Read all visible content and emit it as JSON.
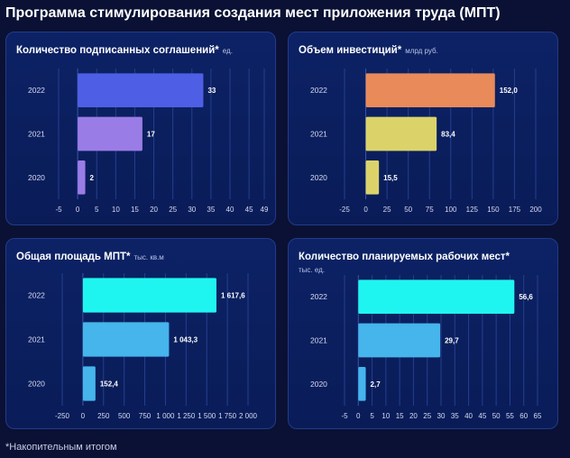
{
  "page": {
    "title": "Программа стимулирования создания мест приложения труда (МПТ)",
    "footnote": "*Накопительным итогом"
  },
  "chart_data": [
    {
      "type": "bar",
      "orientation": "horizontal",
      "title": "Количество подписанных соглашений*",
      "unit": "ед.",
      "categories": [
        "2022",
        "2021",
        "2020"
      ],
      "values": [
        33,
        17,
        2
      ],
      "value_labels": [
        "33",
        "17",
        "2"
      ],
      "colors": [
        "#4e5fe6",
        "#9a7ce6",
        "#9a7ce6"
      ],
      "xlim": [
        -5,
        49
      ],
      "xticks": [
        -5,
        0,
        5,
        10,
        15,
        20,
        25,
        30,
        35,
        40,
        45,
        49
      ],
      "xtick_labels": [
        "-5",
        "0",
        "5",
        "10",
        "15",
        "20",
        "25",
        "30",
        "35",
        "40",
        "45",
        "49"
      ],
      "grid": true
    },
    {
      "type": "bar",
      "orientation": "horizontal",
      "title": "Объем инвестиций*",
      "unit": "млрд руб.",
      "categories": [
        "2022",
        "2021",
        "2020"
      ],
      "values": [
        152.0,
        83.4,
        15.5
      ],
      "value_labels": [
        "152,0",
        "83,4",
        "15,5"
      ],
      "colors": [
        "#e98a5a",
        "#dbd36a",
        "#dbd36a"
      ],
      "xlim": [
        -25,
        200
      ],
      "xticks": [
        -25,
        0,
        25,
        50,
        75,
        100,
        125,
        150,
        175,
        200
      ],
      "xtick_labels": [
        "-25",
        "0",
        "25",
        "50",
        "75",
        "100",
        "125",
        "150",
        "175",
        "200"
      ],
      "grid": true
    },
    {
      "type": "bar",
      "orientation": "horizontal",
      "title": "Общая площадь МПТ*",
      "unit": "тыс. кв.м",
      "categories": [
        "2022",
        "2021",
        "2020"
      ],
      "values": [
        1617.6,
        1043.3,
        152.4
      ],
      "value_labels": [
        "1 617,6",
        "1 043,3",
        "152,4"
      ],
      "colors": [
        "#1ff5f0",
        "#45b5ec",
        "#45b5ec"
      ],
      "xlim": [
        -250,
        2000
      ],
      "xticks": [
        -250,
        0,
        250,
        500,
        750,
        1000,
        1250,
        1500,
        1750,
        2000
      ],
      "xtick_labels": [
        "-250",
        "0",
        "250",
        "500",
        "750",
        "1 000",
        "1 250",
        "1 500",
        "1 750",
        "2 000"
      ],
      "grid": true
    },
    {
      "type": "bar",
      "orientation": "horizontal",
      "title": "Количество планируемых рабочих мест*",
      "unit": "тыс. ед.",
      "categories": [
        "2022",
        "2021",
        "2020"
      ],
      "values": [
        56.6,
        29.7,
        2.7
      ],
      "value_labels": [
        "56,6",
        "29,7",
        "2,7"
      ],
      "colors": [
        "#1ff5f0",
        "#45b5ec",
        "#45b5ec"
      ],
      "xlim": [
        -5,
        65
      ],
      "xticks": [
        -5,
        0,
        5,
        10,
        15,
        20,
        25,
        30,
        35,
        40,
        45,
        50,
        55,
        60,
        65
      ],
      "xtick_labels": [
        "-5",
        "0",
        "5",
        "10",
        "15",
        "20",
        "25",
        "30",
        "35",
        "40",
        "45",
        "50",
        "55",
        "60",
        "65"
      ],
      "grid": true
    }
  ]
}
